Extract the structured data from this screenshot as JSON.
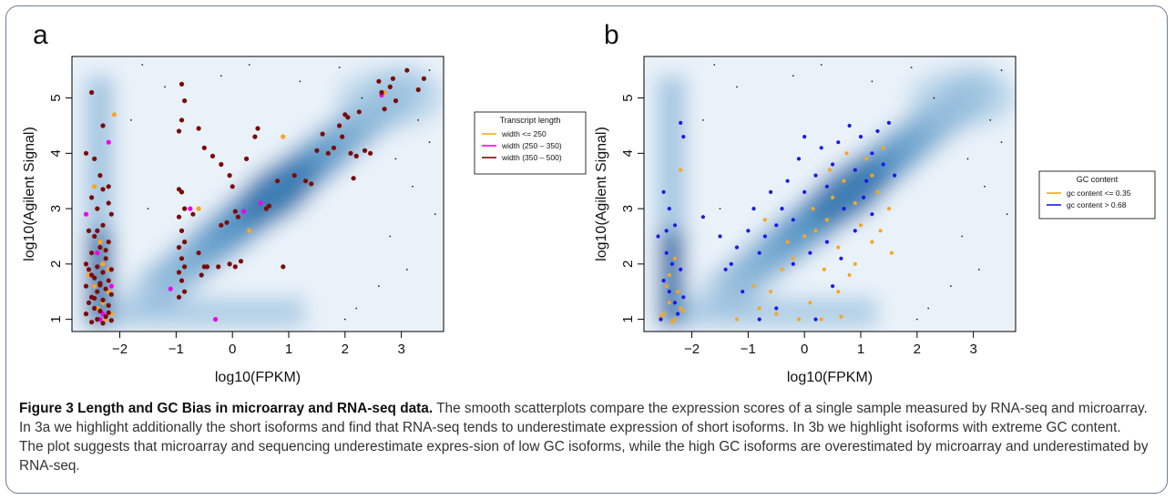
{
  "figure": {
    "caption_title": "Figure 3 Length and GC Bias in microarray and RNA-seq data.",
    "caption_text": " The smooth scatterplots compare the expression scores of a single sample measured by RNA-seq and microarray. In 3a we highlight additionally the short isoforms and find that RNA-seq tends to underestimate expression of short isoforms. In 3b we highlight isoforms with extreme GC content. The plot suggests that microarray and sequencing underestimate expres-sion of low GC isoforms, while the high GC isoforms are overestimated by microarray and underestimated by RNA-seq."
  },
  "chart_data": [
    {
      "panel": "a",
      "type": "scatter",
      "xlabel": "log10(FPKM)",
      "ylabel": "log10(Agilent Signal)",
      "xlim": [
        -2.85,
        3.75
      ],
      "ylim": [
        0.78,
        5.75
      ],
      "xticks": [
        "-2",
        "-1",
        "0",
        "1",
        "2",
        "3"
      ],
      "yticks": [
        "1",
        "2",
        "3",
        "4",
        "5"
      ],
      "background": "smoothed density of all isoforms (blue)",
      "legend_title": "Transcript length",
      "legend_placement": "right",
      "series": [
        {
          "name": "width <= 250",
          "color": "#f5a623",
          "points": [
            [
              -2.45,
              3.4
            ],
            [
              -2.3,
              2.0
            ],
            [
              -2.2,
              1.5
            ],
            [
              -2.4,
              1.2
            ],
            [
              -2.25,
              1.0
            ],
            [
              -2.55,
              1.8
            ],
            [
              -2.35,
              2.4
            ],
            [
              -2.2,
              1.9
            ],
            [
              -2.1,
              4.7
            ],
            [
              -2.3,
              1.3
            ],
            [
              -0.6,
              3.0
            ],
            [
              0.3,
              2.6
            ],
            [
              0.9,
              4.3
            ],
            [
              2.7,
              5.1
            ],
            [
              -2.45,
              1.6
            ],
            [
              -2.15,
              1.1
            ]
          ]
        },
        {
          "name": "width (250 – 350)",
          "color": "#ee00ee",
          "points": [
            [
              -2.6,
              2.9
            ],
            [
              -2.2,
              4.2
            ],
            [
              -2.5,
              1.4
            ],
            [
              -2.3,
              1.1
            ],
            [
              -2.15,
              1.6
            ],
            [
              -2.4,
              2.2
            ],
            [
              -1.1,
              1.55
            ],
            [
              -0.3,
              1.0
            ],
            [
              -0.75,
              3.0
            ],
            [
              0.2,
              2.95
            ],
            [
              0.5,
              3.1
            ],
            [
              2.65,
              5.05
            ],
            [
              -2.35,
              1.0
            ]
          ]
        },
        {
          "name": "width (350 – 500)",
          "color": "#7a0b0b",
          "points": [
            [
              -2.5,
              5.1
            ],
            [
              -2.6,
              4.0
            ],
            [
              -2.45,
              3.9
            ],
            [
              -2.3,
              4.5
            ],
            [
              -2.35,
              3.6
            ],
            [
              -2.2,
              3.4
            ],
            [
              -2.5,
              3.2
            ],
            [
              -2.4,
              3.0
            ],
            [
              -2.15,
              2.9
            ],
            [
              -2.3,
              2.7
            ],
            [
              -2.55,
              2.6
            ],
            [
              -2.45,
              2.5
            ],
            [
              -2.2,
              2.4
            ],
            [
              -2.35,
              2.3
            ],
            [
              -2.5,
              2.2
            ],
            [
              -2.25,
              2.1
            ],
            [
              -2.6,
              2.0
            ],
            [
              -2.4,
              1.95
            ],
            [
              -2.15,
              1.9
            ],
            [
              -2.3,
              1.85
            ],
            [
              -2.5,
              1.8
            ],
            [
              -2.45,
              1.75
            ],
            [
              -2.2,
              1.7
            ],
            [
              -2.35,
              1.65
            ],
            [
              -2.6,
              1.6
            ],
            [
              -2.25,
              1.55
            ],
            [
              -2.4,
              1.5
            ],
            [
              -2.15,
              1.45
            ],
            [
              -2.5,
              1.4
            ],
            [
              -2.3,
              1.35
            ],
            [
              -2.55,
              1.3
            ],
            [
              -2.2,
              1.25
            ],
            [
              -2.45,
              1.2
            ],
            [
              -2.35,
              1.15
            ],
            [
              -2.6,
              1.1
            ],
            [
              -2.25,
              1.05
            ],
            [
              -2.4,
              1.0
            ],
            [
              -2.15,
              0.98
            ],
            [
              -2.5,
              0.95
            ],
            [
              -2.3,
              0.93
            ],
            [
              -2.2,
              1.12
            ],
            [
              -2.45,
              1.38
            ],
            [
              -2.35,
              1.62
            ],
            [
              -2.55,
              1.9
            ],
            [
              -2.25,
              2.25
            ],
            [
              -2.4,
              2.6
            ],
            [
              -2.2,
              3.1
            ],
            [
              -2.3,
              3.35
            ],
            [
              -0.9,
              5.25
            ],
            [
              -0.85,
              4.95
            ],
            [
              -0.9,
              4.6
            ],
            [
              -0.95,
              4.4
            ],
            [
              -0.6,
              4.45
            ],
            [
              -0.5,
              4.1
            ],
            [
              -0.35,
              3.95
            ],
            [
              -0.2,
              3.8
            ],
            [
              -0.05,
              3.6
            ],
            [
              0.0,
              3.4
            ],
            [
              -0.95,
              3.35
            ],
            [
              -0.9,
              3.3
            ],
            [
              -0.85,
              3.0
            ],
            [
              -0.95,
              2.85
            ],
            [
              -0.9,
              2.6
            ],
            [
              -0.85,
              2.4
            ],
            [
              -0.95,
              2.3
            ],
            [
              -0.9,
              2.1
            ],
            [
              -0.85,
              1.95
            ],
            [
              -0.95,
              1.85
            ],
            [
              -0.9,
              1.7
            ],
            [
              -0.85,
              1.5
            ],
            [
              -0.95,
              1.4
            ],
            [
              -0.6,
              2.2
            ],
            [
              -0.55,
              1.8
            ],
            [
              -0.5,
              1.95
            ],
            [
              -0.7,
              2.9
            ],
            [
              -0.2,
              2.7
            ],
            [
              -0.1,
              2.75
            ],
            [
              0.05,
              2.95
            ],
            [
              0.1,
              2.85
            ],
            [
              0.15,
              2.05
            ],
            [
              0.05,
              1.95
            ],
            [
              0.25,
              3.9
            ],
            [
              0.4,
              4.3
            ],
            [
              0.45,
              4.45
            ],
            [
              0.6,
              3.0
            ],
            [
              0.65,
              3.05
            ],
            [
              0.8,
              3.5
            ],
            [
              1.1,
              3.6
            ],
            [
              1.3,
              3.5
            ],
            [
              1.4,
              3.45
            ],
            [
              1.5,
              4.05
            ],
            [
              1.6,
              4.35
            ],
            [
              1.7,
              4.0
            ],
            [
              1.8,
              4.1
            ],
            [
              1.9,
              4.5
            ],
            [
              1.95,
              4.3
            ],
            [
              2.05,
              4.65
            ],
            [
              2.0,
              4.7
            ],
            [
              2.1,
              4.0
            ],
            [
              2.2,
              3.95
            ],
            [
              2.25,
              4.75
            ],
            [
              2.35,
              4.05
            ],
            [
              2.45,
              4.0
            ],
            [
              2.6,
              5.3
            ],
            [
              2.65,
              5.1
            ],
            [
              2.7,
              4.8
            ],
            [
              2.8,
              5.2
            ],
            [
              2.85,
              5.35
            ],
            [
              2.9,
              4.95
            ],
            [
              3.1,
              5.5
            ],
            [
              3.3,
              5.15
            ],
            [
              3.4,
              5.35
            ],
            [
              2.15,
              3.55
            ],
            [
              0.9,
              1.95
            ],
            [
              -0.25,
              1.95
            ],
            [
              -0.45,
              1.95
            ],
            [
              -0.05,
              2.0
            ]
          ]
        }
      ]
    },
    {
      "panel": "b",
      "type": "scatter",
      "xlabel": "log10(FPKM)",
      "ylabel": "log10(Agilent Signal)",
      "xlim": [
        -2.85,
        3.75
      ],
      "ylim": [
        0.78,
        5.75
      ],
      "xticks": [
        "-2",
        "-1",
        "0",
        "1",
        "2",
        "3"
      ],
      "yticks": [
        "1",
        "2",
        "3",
        "4",
        "5"
      ],
      "background": "smoothed density of all isoforms (blue)",
      "legend_title": "GC content",
      "legend_placement": "right",
      "series": [
        {
          "name": "gc content <= 0.35",
          "color": "#f5a623",
          "points": [
            [
              -2.5,
              1.1
            ],
            [
              -2.4,
              1.3
            ],
            [
              -2.3,
              1.0
            ],
            [
              -2.2,
              1.2
            ],
            [
              -2.45,
              1.6
            ],
            [
              -2.35,
              0.95
            ],
            [
              -2.25,
              1.5
            ],
            [
              -2.55,
              1.05
            ],
            [
              -2.15,
              1.15
            ],
            [
              -2.4,
              1.8
            ],
            [
              -2.3,
              2.1
            ],
            [
              -2.2,
              3.7
            ],
            [
              -1.2,
              1.0
            ],
            [
              -0.8,
              1.2
            ],
            [
              -0.6,
              1.5
            ],
            [
              -0.4,
              1.9
            ],
            [
              -0.2,
              2.1
            ],
            [
              0.0,
              2.5
            ],
            [
              0.2,
              2.6
            ],
            [
              0.3,
              1.0
            ],
            [
              0.4,
              2.8
            ],
            [
              0.5,
              3.2
            ],
            [
              0.6,
              2.3
            ],
            [
              0.7,
              3.5
            ],
            [
              0.8,
              1.8
            ],
            [
              0.9,
              3.1
            ],
            [
              1.0,
              2.7
            ],
            [
              1.1,
              3.9
            ],
            [
              1.2,
              2.4
            ],
            [
              1.3,
              3.3
            ],
            [
              1.4,
              4.1
            ],
            [
              1.5,
              3.0
            ],
            [
              1.55,
              2.2
            ],
            [
              0.1,
              1.3
            ],
            [
              -0.1,
              1.0
            ],
            [
              -0.5,
              1.1
            ],
            [
              -0.3,
              2.4
            ],
            [
              0.6,
              1.5
            ],
            [
              0.9,
              2.0
            ],
            [
              1.2,
              3.6
            ],
            [
              0.75,
              4.0
            ],
            [
              0.45,
              3.7
            ],
            [
              0.35,
              1.9
            ],
            [
              -0.7,
              2.8
            ],
            [
              1.35,
              2.6
            ],
            [
              0.65,
              1.05
            ],
            [
              -0.9,
              1.6
            ],
            [
              0.15,
              3.0
            ]
          ]
        },
        {
          "name": "gc content > 0.68",
          "color": "#1a1ae6",
          "points": [
            [
              -2.2,
              4.55
            ],
            [
              -2.15,
              4.3
            ],
            [
              -2.5,
              3.3
            ],
            [
              -2.4,
              3.0
            ],
            [
              -2.3,
              2.7
            ],
            [
              -2.6,
              2.5
            ],
            [
              -2.45,
              2.2
            ],
            [
              -2.35,
              2.0
            ],
            [
              -2.2,
              1.9
            ],
            [
              -2.5,
              1.7
            ],
            [
              -2.4,
              1.5
            ],
            [
              -2.3,
              1.3
            ],
            [
              -2.25,
              1.1
            ],
            [
              -2.55,
              1.0
            ],
            [
              -2.15,
              1.4
            ],
            [
              -2.45,
              2.6
            ],
            [
              -1.8,
              2.85
            ],
            [
              -1.5,
              2.5
            ],
            [
              -1.3,
              2.0
            ],
            [
              -1.2,
              2.3
            ],
            [
              -1.0,
              2.6
            ],
            [
              -0.9,
              3.0
            ],
            [
              -0.8,
              2.2
            ],
            [
              -0.7,
              2.5
            ],
            [
              -0.6,
              3.3
            ],
            [
              -0.5,
              2.7
            ],
            [
              -0.4,
              3.0
            ],
            [
              -0.3,
              3.5
            ],
            [
              -0.2,
              2.8
            ],
            [
              -0.1,
              3.9
            ],
            [
              0.0,
              3.3
            ],
            [
              0.1,
              2.2
            ],
            [
              0.2,
              3.6
            ],
            [
              0.3,
              4.1
            ],
            [
              0.4,
              3.4
            ],
            [
              0.5,
              3.8
            ],
            [
              0.6,
              4.2
            ],
            [
              0.7,
              3.0
            ],
            [
              0.8,
              4.5
            ],
            [
              0.9,
              3.7
            ],
            [
              1.0,
              4.3
            ],
            [
              1.1,
              3.5
            ],
            [
              1.2,
              4.0
            ],
            [
              1.3,
              4.4
            ],
            [
              1.4,
              3.8
            ],
            [
              1.5,
              4.55
            ],
            [
              1.6,
              3.6
            ],
            [
              -1.1,
              1.5
            ],
            [
              -0.5,
              1.2
            ],
            [
              0.2,
              1.0
            ],
            [
              0.5,
              1.6
            ],
            [
              -0.2,
              2.0
            ],
            [
              0.9,
              2.6
            ],
            [
              1.2,
              2.9
            ],
            [
              -1.4,
              1.9
            ],
            [
              0.0,
              4.3
            ],
            [
              0.65,
              2.1
            ],
            [
              -0.8,
              1.0
            ],
            [
              0.4,
              2.4
            ],
            [
              1.05,
              3.2
            ]
          ]
        }
      ]
    }
  ]
}
